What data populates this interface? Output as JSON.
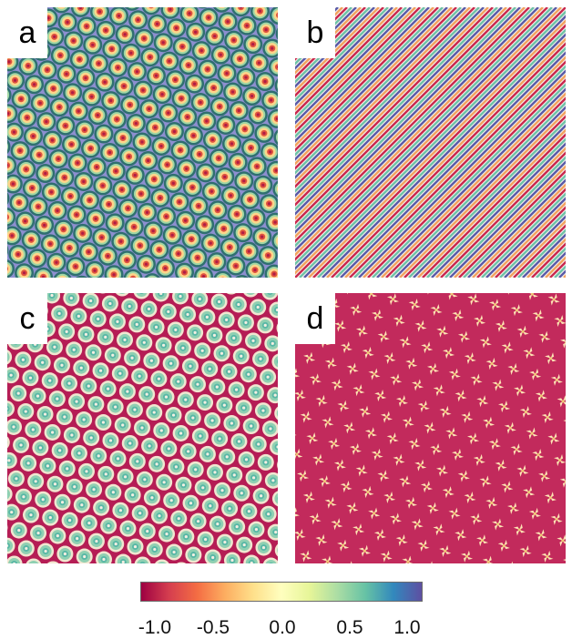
{
  "panels": [
    {
      "id": "a",
      "label": "a",
      "pattern": "skyrmion-lattice-blue-background"
    },
    {
      "id": "b",
      "label": "b",
      "pattern": "diagonal-stripes"
    },
    {
      "id": "c",
      "label": "c",
      "pattern": "skyrmion-lattice-red-background"
    },
    {
      "id": "d",
      "label": "d",
      "pattern": "pinwheel-defect-lattice-red-background"
    }
  ],
  "colorbar": {
    "tick_labels": [
      "-1.0",
      "-0.5",
      "0.0",
      "0.5",
      "1.0"
    ],
    "range": [
      -1.0,
      1.0
    ],
    "colors": [
      "#9e0142",
      "#d53e4f",
      "#f46d43",
      "#fdae61",
      "#fee08b",
      "#ffffbf",
      "#e6f598",
      "#abdda4",
      "#66c2a5",
      "#3288bd",
      "#5e4fa2"
    ]
  }
}
